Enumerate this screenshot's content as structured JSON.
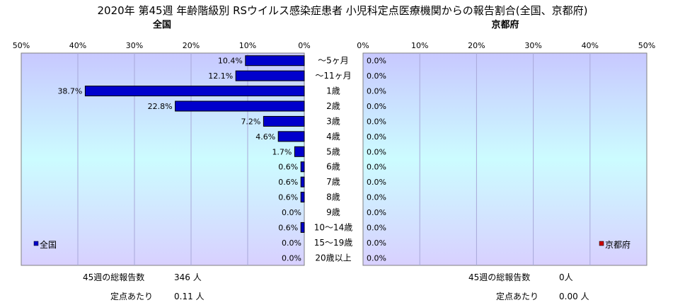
{
  "title": "2020年 第45週 年齢階級別 RSウイルス感染症患者 小児科定点医療機関からの報告割合(全国、京都府)",
  "panels": {
    "left": {
      "title": "全国",
      "legend": "全国",
      "color": "#0000cc"
    },
    "right": {
      "title": "京都府",
      "legend": "京都府",
      "color": "#cc0000"
    }
  },
  "stats": {
    "left": {
      "total_label": "45週の総報告数",
      "total_value": "346 人",
      "per_label": "定点あたり",
      "per_value": "0.11 人"
    },
    "right": {
      "total_label": "45週の総報告数",
      "total_value": "0人",
      "per_label": "定点あたり",
      "per_value": "0.00 人"
    }
  },
  "chart_data": [
    {
      "type": "bar",
      "orientation": "horizontal-reversed",
      "title": "全国",
      "categories": [
        "～5ヶ月",
        "～11ヶ月",
        "1歳",
        "2歳",
        "3歳",
        "4歳",
        "5歳",
        "6歳",
        "7歳",
        "8歳",
        "9歳",
        "10～14歳",
        "15～19歳",
        "20歳以上"
      ],
      "values": [
        10.4,
        12.1,
        38.7,
        22.8,
        7.2,
        4.6,
        1.7,
        0.6,
        0.6,
        0.6,
        0.0,
        0.6,
        0.0,
        0.0
      ],
      "value_labels": [
        "10.4%",
        "12.1%",
        "38.7%",
        "22.8%",
        "7.2%",
        "4.6%",
        "1.7%",
        "0.6%",
        "0.6%",
        "0.6%",
        "0.0%",
        "0.6%",
        "0.0%",
        "0.0%"
      ],
      "xticks": [
        "50%",
        "40%",
        "30%",
        "20%",
        "10%",
        "0%"
      ],
      "xlim": [
        0,
        50
      ],
      "legend": "bottom-left",
      "grid": true
    },
    {
      "type": "bar",
      "orientation": "horizontal",
      "title": "京都府",
      "categories": [
        "～5ヶ月",
        "～11ヶ月",
        "1歳",
        "2歳",
        "3歳",
        "4歳",
        "5歳",
        "6歳",
        "7歳",
        "8歳",
        "9歳",
        "10～14歳",
        "15～19歳",
        "20歳以上"
      ],
      "values": [
        0,
        0,
        0,
        0,
        0,
        0,
        0,
        0,
        0,
        0,
        0,
        0,
        0,
        0
      ],
      "value_labels": [
        "0.0%",
        "0.0%",
        "0.0%",
        "0.0%",
        "0.0%",
        "0.0%",
        "0.0%",
        "0.0%",
        "0.0%",
        "0.0%",
        "0.0%",
        "0.0%",
        "0.0%",
        "0.0%"
      ],
      "xticks": [
        "0%",
        "10%",
        "20%",
        "30%",
        "40%",
        "50%"
      ],
      "xlim": [
        0,
        50
      ],
      "legend": "bottom-right",
      "grid": true
    }
  ]
}
